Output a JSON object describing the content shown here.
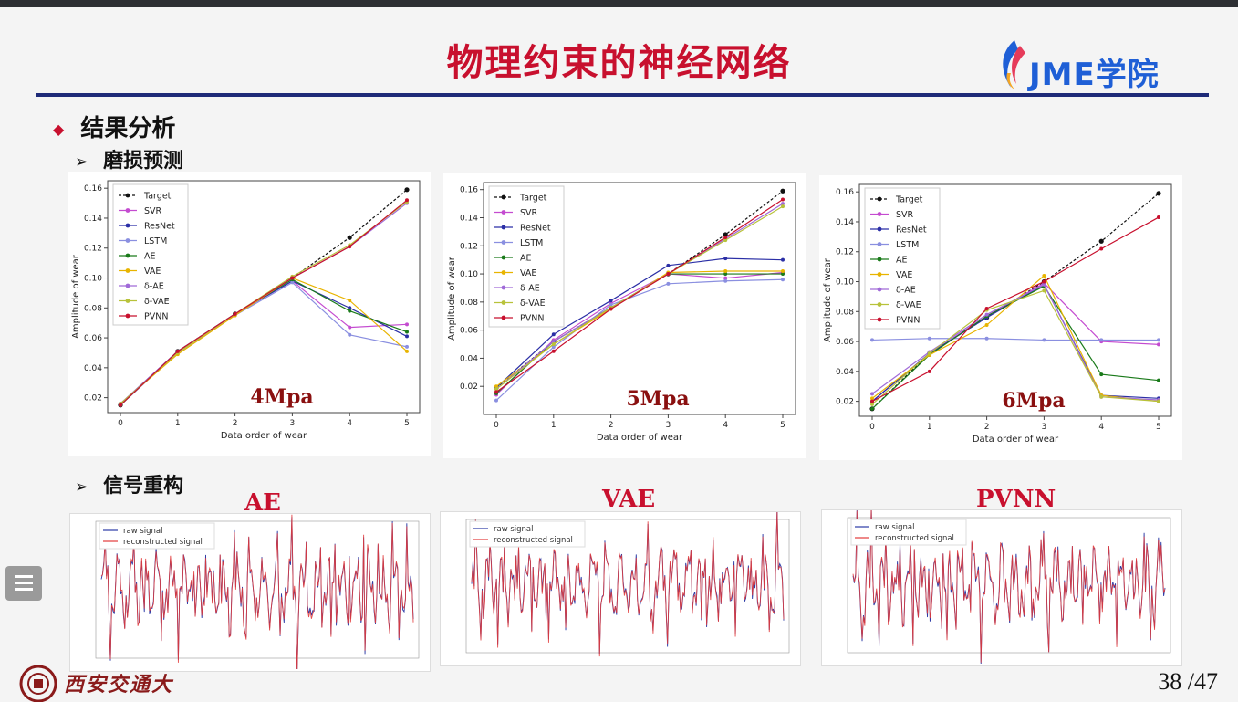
{
  "slide": {
    "title": "物理约束的神经网络",
    "logo_text": "JME学院",
    "section": "结果分析",
    "sub1": "磨损预测",
    "sub2": "信号重构",
    "page": "38 /47",
    "university": "西安交通大學"
  },
  "icons": {
    "menu": "menu-icon",
    "bullet": "diamond-icon",
    "arrow": "arrowhead-icon"
  },
  "colors": {
    "title": "#c8102e",
    "rule": "#1e2a78",
    "logo": "#1f5fd6"
  },
  "legend_labels": [
    "Target",
    "SVR",
    "ResNet",
    "LSTM",
    "AE",
    "VAE",
    "δ-AE",
    "δ-VAE",
    "PVNN"
  ],
  "series_colors": [
    "#111111",
    "#c44bd0",
    "#2b2fa6",
    "#8a8fe0",
    "#1a7a1a",
    "#e8b400",
    "#a06ad8",
    "#b8c23a",
    "#c8102e"
  ],
  "chart_data": [
    {
      "type": "line",
      "title": "4Mpa",
      "xlabel": "Data order of wear",
      "ylabel": "Amplitude of wear",
      "x": [
        0,
        1,
        2,
        3,
        4,
        5
      ],
      "ylim": [
        0.01,
        0.165
      ],
      "yticks": [
        "0.02",
        "0.04",
        "0.06",
        "0.08",
        "0.10",
        "0.12",
        "0.14",
        "0.16"
      ],
      "xticks": [
        "0",
        "1",
        "2",
        "3",
        "4",
        "5"
      ],
      "legend": "top-left",
      "series": [
        {
          "name": "Target",
          "values": [
            0.015,
            0.051,
            0.076,
            0.1,
            0.127,
            0.159
          ]
        },
        {
          "name": "SVR",
          "values": [
            0.016,
            0.05,
            0.076,
            0.098,
            0.067,
            0.069
          ]
        },
        {
          "name": "ResNet",
          "values": [
            0.016,
            0.051,
            0.076,
            0.098,
            0.08,
            0.061
          ]
        },
        {
          "name": "LSTM",
          "values": [
            0.015,
            0.05,
            0.075,
            0.097,
            0.062,
            0.054
          ]
        },
        {
          "name": "AE",
          "values": [
            0.015,
            0.051,
            0.076,
            0.099,
            0.078,
            0.064
          ]
        },
        {
          "name": "VAE",
          "values": [
            0.016,
            0.049,
            0.075,
            0.1,
            0.085,
            0.051
          ]
        },
        {
          "name": "δ-AE",
          "values": [
            0.016,
            0.051,
            0.076,
            0.1,
            0.121,
            0.15
          ]
        },
        {
          "name": "δ-VAE",
          "values": [
            0.016,
            0.05,
            0.076,
            0.101,
            0.122,
            0.151
          ]
        },
        {
          "name": "PVNN",
          "values": [
            0.015,
            0.051,
            0.076,
            0.1,
            0.121,
            0.152
          ]
        }
      ]
    },
    {
      "type": "line",
      "title": "5Mpa",
      "xlabel": "Data order of wear",
      "ylabel": "Amplitude of wear",
      "x": [
        0,
        1,
        2,
        3,
        4,
        5
      ],
      "ylim": [
        0.0,
        0.165
      ],
      "yticks": [
        "0.02",
        "0.04",
        "0.06",
        "0.08",
        "0.10",
        "0.12",
        "0.14",
        "0.16"
      ],
      "xticks": [
        "0",
        "1",
        "2",
        "3",
        "4",
        "5"
      ],
      "legend": "top-left",
      "series": [
        {
          "name": "Target",
          "values": [
            0.019,
            0.052,
            0.076,
            0.1,
            0.128,
            0.159
          ]
        },
        {
          "name": "SVR",
          "values": [
            0.014,
            0.053,
            0.079,
            0.1,
            0.097,
            0.101
          ]
        },
        {
          "name": "ResNet",
          "values": [
            0.019,
            0.057,
            0.081,
            0.106,
            0.111,
            0.11
          ]
        },
        {
          "name": "LSTM",
          "values": [
            0.01,
            0.048,
            0.078,
            0.093,
            0.095,
            0.096
          ]
        },
        {
          "name": "AE",
          "values": [
            0.015,
            0.052,
            0.076,
            0.1,
            0.1,
            0.1
          ]
        },
        {
          "name": "VAE",
          "values": [
            0.02,
            0.05,
            0.075,
            0.101,
            0.102,
            0.102
          ]
        },
        {
          "name": "δ-AE",
          "values": [
            0.018,
            0.052,
            0.076,
            0.1,
            0.125,
            0.15
          ]
        },
        {
          "name": "δ-VAE",
          "values": [
            0.018,
            0.05,
            0.076,
            0.1,
            0.124,
            0.148
          ]
        },
        {
          "name": "PVNN",
          "values": [
            0.016,
            0.045,
            0.075,
            0.1,
            0.126,
            0.153
          ]
        }
      ]
    },
    {
      "type": "line",
      "title": "6Mpa",
      "xlabel": "Data order of wear",
      "ylabel": "Amplitude of wear",
      "x": [
        0,
        1,
        2,
        3,
        4,
        5
      ],
      "ylim": [
        0.01,
        0.165
      ],
      "yticks": [
        "0.02",
        "0.04",
        "0.06",
        "0.08",
        "0.10",
        "0.12",
        "0.14",
        "0.16"
      ],
      "xticks": [
        "0",
        "1",
        "2",
        "3",
        "4",
        "5"
      ],
      "legend": "top-left",
      "series": [
        {
          "name": "Target",
          "values": [
            0.015,
            0.052,
            0.076,
            0.1,
            0.127,
            0.159
          ]
        },
        {
          "name": "SVR",
          "values": [
            0.02,
            0.052,
            0.077,
            0.099,
            0.06,
            0.058
          ]
        },
        {
          "name": "ResNet",
          "values": [
            0.02,
            0.052,
            0.076,
            0.098,
            0.024,
            0.022
          ]
        },
        {
          "name": "LSTM",
          "values": [
            0.061,
            0.062,
            0.062,
            0.061,
            0.061,
            0.061
          ]
        },
        {
          "name": "AE",
          "values": [
            0.015,
            0.051,
            0.077,
            0.097,
            0.038,
            0.034
          ]
        },
        {
          "name": "VAE",
          "values": [
            0.022,
            0.051,
            0.071,
            0.104,
            0.024,
            0.02
          ]
        },
        {
          "name": "δ-AE",
          "values": [
            0.025,
            0.053,
            0.078,
            0.098,
            0.023,
            0.021
          ]
        },
        {
          "name": "δ-VAE",
          "values": [
            0.018,
            0.052,
            0.081,
            0.094,
            0.023,
            0.02
          ]
        },
        {
          "name": "PVNN",
          "values": [
            0.02,
            0.04,
            0.082,
            0.1,
            0.122,
            0.143
          ]
        }
      ]
    }
  ],
  "signal_panels": [
    {
      "title": "AE",
      "legend": [
        "raw signal",
        "reconstructed signal"
      ]
    },
    {
      "title": "VAE",
      "legend": [
        "raw signal",
        "reconstructed signal"
      ]
    },
    {
      "title": "PVNN",
      "legend": [
        "raw signal",
        "reconstructed signal"
      ]
    }
  ]
}
